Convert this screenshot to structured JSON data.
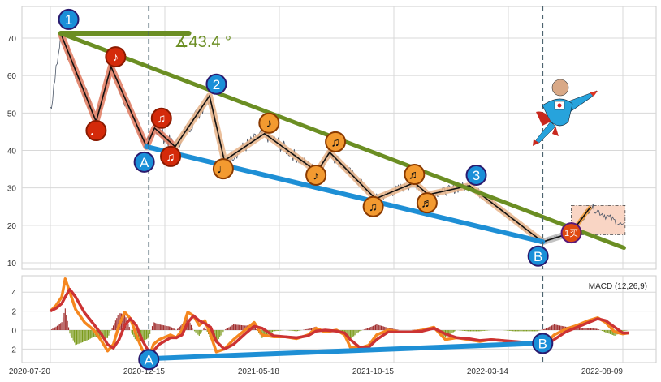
{
  "chart_data": {
    "type": "line",
    "title": "",
    "x_unit": "bar index (trading days)",
    "x_ticks": [
      {
        "i": 0,
        "label": "2020-07-20"
      },
      {
        "i": 100,
        "label": "2020-12-15"
      },
      {
        "i": 200,
        "label": "2021-05-18"
      },
      {
        "i": 300,
        "label": "2021-10-15"
      },
      {
        "i": 400,
        "label": "2022-03-14"
      },
      {
        "i": 500,
        "label": "2022-08-09"
      }
    ],
    "price_panel": {
      "ylim": [
        8,
        78
      ],
      "y_ticks": [
        "10",
        "20",
        "30",
        "40",
        "50",
        "60",
        "70"
      ],
      "zigzag": [
        [
          9,
          71.3
        ],
        [
          40,
          47.7
        ],
        [
          53,
          62.4
        ],
        [
          84,
          41
        ],
        [
          91,
          46
        ],
        [
          109,
          41
        ],
        [
          139,
          54.6
        ],
        [
          152,
          37.3
        ],
        [
          187,
          44.5
        ],
        [
          233,
          34.3
        ],
        [
          244,
          39.5
        ],
        [
          284,
          27.1
        ],
        [
          318,
          31.4
        ],
        [
          330,
          28.2
        ],
        [
          366,
          30.6
        ],
        [
          430,
          15.6
        ],
        [
          455,
          18
        ],
        [
          472,
          25
        ],
        [
          502,
          19.5
        ]
      ],
      "upper_trendline": [
        [
          9,
          71.3
        ],
        [
          501,
          14
        ]
      ],
      "angle_reference_line": [
        [
          9,
          71.3
        ],
        [
          121,
          71.3
        ]
      ],
      "angle_label": "∡43.4 °",
      "lower_trendline": [
        [
          84,
          41
        ],
        [
          430,
          15.6
        ]
      ],
      "vertical_markers": [
        86,
        430
      ],
      "buy_box": {
        "i0": 455,
        "i1": 502,
        "low": 17.5,
        "high": 25.3
      },
      "markers": [
        {
          "label": "1",
          "style": "blue",
          "i": 16,
          "v": 75
        },
        {
          "label": "2",
          "style": "blue",
          "i": 145,
          "v": 57.7
        },
        {
          "label": "3",
          "style": "blue",
          "i": 372,
          "v": 33.4
        },
        {
          "label": "A",
          "style": "blue",
          "i": 82,
          "v": 36.9
        },
        {
          "label": "B",
          "style": "blue",
          "i": 426,
          "v": 11.8
        },
        {
          "label": "♩",
          "style": "red",
          "i": 40,
          "v": 45.3
        },
        {
          "label": "♪",
          "style": "red",
          "i": 57,
          "v": 65
        },
        {
          "label": "♫",
          "style": "red",
          "i": 97,
          "v": 48.6
        },
        {
          "label": "♫",
          "style": "red",
          "i": 105,
          "v": 38.4
        },
        {
          "label": "♩",
          "style": "orange",
          "i": 151,
          "v": 35.1
        },
        {
          "label": "♪",
          "style": "orange",
          "i": 191,
          "v": 47.3
        },
        {
          "label": "♪",
          "style": "orange",
          "i": 232,
          "v": 33.4
        },
        {
          "label": "♫",
          "style": "orange",
          "i": 249,
          "v": 42.3
        },
        {
          "label": "♫",
          "style": "orange",
          "i": 282,
          "v": 25
        },
        {
          "label": "♬",
          "style": "orange",
          "i": 318,
          "v": 33.6
        },
        {
          "label": "♬",
          "style": "orange",
          "i": 329,
          "v": 26
        },
        {
          "label": "1买",
          "style": "buy",
          "i": 455,
          "v": 18
        }
      ]
    },
    "macd_panel": {
      "legend": "MACD (12,26,9)",
      "ylim": [
        -3.5,
        5.7
      ],
      "y_ticks": [
        "4",
        "2",
        "0",
        "-2"
      ],
      "x": [
        0,
        5,
        10,
        13,
        17,
        22,
        30,
        38,
        45,
        50,
        55,
        60,
        65,
        70,
        75,
        80,
        86,
        90,
        95,
        105,
        110,
        115,
        120,
        125,
        130,
        135,
        140,
        145,
        152,
        160,
        170,
        178,
        185,
        195,
        205,
        215,
        225,
        232,
        240,
        250,
        257,
        262,
        270,
        278,
        285,
        295,
        305,
        315,
        325,
        335,
        345,
        355,
        365,
        375,
        385,
        395,
        405,
        415,
        425,
        432,
        440,
        450,
        460,
        470,
        478,
        485,
        493,
        500,
        505
      ],
      "dif": [
        2.0,
        2.6,
        3.5,
        5.4,
        4.0,
        2.2,
        0.8,
        0,
        -1.2,
        -2.2,
        -1.5,
        0.5,
        1.9,
        1.2,
        -0.5,
        -2,
        -3.0,
        -1.5,
        -1,
        -0.5,
        -0.8,
        0,
        1.9,
        1.5,
        0.5,
        1,
        -0.5,
        -2.3,
        -2.0,
        -1,
        0,
        0.8,
        -0.5,
        -0.7,
        -0.7,
        -0.9,
        -0.5,
        0.2,
        -0.2,
        0,
        -0.5,
        -1.8,
        -1.9,
        -1.6,
        -0.5,
        0,
        -0.2,
        -0.2,
        0,
        0.3,
        -1,
        -0.8,
        -1,
        -1.2,
        -1.0,
        -1.1,
        -1.3,
        -1.4,
        -1.6,
        -1.5,
        -0.5,
        0.1,
        0.5,
        1.0,
        1.3,
        0.8,
        -0.2,
        -0.4,
        -0.3
      ],
      "dea": [
        2.0,
        2.3,
        2.8,
        3.5,
        4.3,
        3.5,
        1.8,
        0.6,
        -0.5,
        -1.5,
        -1.9,
        -1,
        0.5,
        1.2,
        0.5,
        -1,
        -2.3,
        -2.2,
        -1.5,
        -0.8,
        -0.8,
        -0.5,
        0.8,
        1.5,
        1.0,
        0.7,
        0.3,
        -1.2,
        -2.0,
        -1.5,
        -0.4,
        0.4,
        0.2,
        -0.6,
        -0.7,
        -0.8,
        -0.6,
        -0.1,
        0,
        -0.1,
        -0.3,
        -1.0,
        -1.8,
        -1.8,
        -1.0,
        -0.2,
        -0.2,
        -0.2,
        -0.1,
        0.2,
        -0.4,
        -0.8,
        -0.9,
        -1.1,
        -1.0,
        -1.1,
        -1.2,
        -1.3,
        -1.5,
        -1.6,
        -1.0,
        -0.2,
        0.3,
        0.8,
        1.2,
        1.0,
        0.3,
        -0.3,
        -0.3
      ],
      "divergence_line": [
        [
          88,
          -3.0
        ],
        [
          425,
          -1.4
        ]
      ],
      "markers": [
        {
          "label": "A",
          "style": "blue",
          "i": 86,
          "v": -3.1
        },
        {
          "label": "B",
          "style": "blue",
          "i": 430,
          "v": -1.4
        }
      ]
    },
    "colors": {
      "dif": "#f5871f",
      "dea": "#cc3333",
      "hist_pos": "#9e2a2a",
      "hist_neg": "#7a9a1a",
      "upper": "#6b8e23",
      "lower": "#1e8fd5",
      "price": "#4a5566"
    }
  }
}
